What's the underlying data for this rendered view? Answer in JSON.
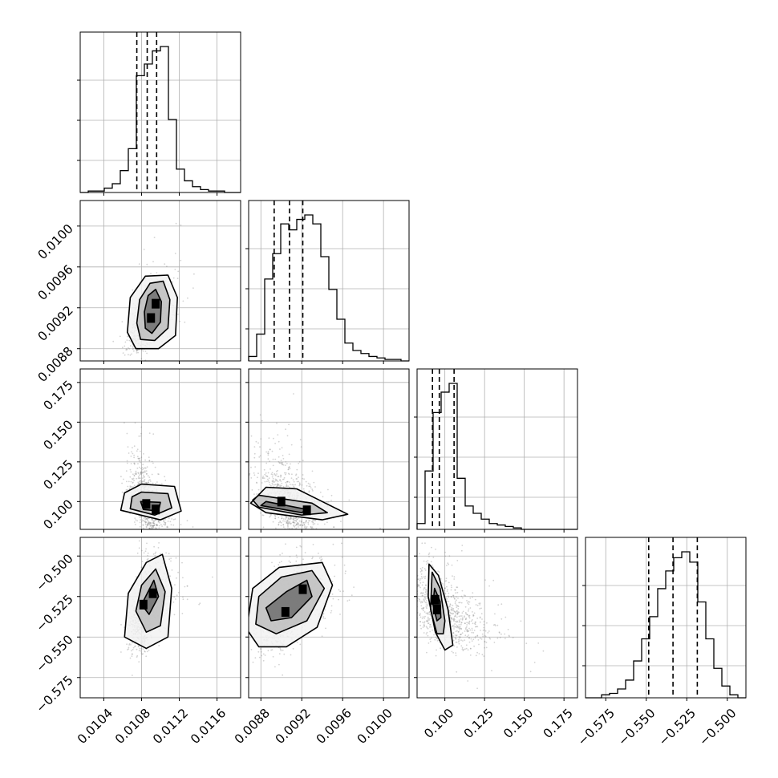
{
  "chart_data": {
    "type": "corner",
    "grid": true,
    "scatter_color": "#808080",
    "line_color": "#000000",
    "parameters": [
      {
        "range": [
          0.01015,
          0.01185
        ],
        "ticks": [
          0.0104,
          0.0108,
          0.0112,
          0.0116
        ],
        "tick_labels": [
          "0.0104",
          "0.0108",
          "0.0112",
          "0.0116"
        ],
        "quantiles": [
          0.01075,
          0.01086,
          0.01096
        ],
        "mean": 0.01086,
        "sd": 9e-05
      },
      {
        "range": [
          0.00868,
          0.01025
        ],
        "ticks": [
          0.0088,
          0.0092,
          0.0096,
          0.01
        ],
        "tick_labels": [
          "0.0088",
          "0.0092",
          "0.0096",
          "0.0100"
        ],
        "quantiles": [
          0.00893,
          0.00908,
          0.00921
        ],
        "mean": 0.00907,
        "sd": 0.00015
      },
      {
        "range": [
          0.0825,
          0.1835
        ],
        "ticks": [
          0.1,
          0.125,
          0.15,
          0.175
        ],
        "tick_labels": [
          "0.100",
          "0.125",
          "0.150",
          "0.175"
        ],
        "quantiles": [
          0.0922,
          0.0965,
          0.1058
        ],
        "mean": 0.098,
        "sd": 0.012
      },
      {
        "range": [
          -0.5875,
          -0.4885
        ],
        "ticks": [
          -0.575,
          -0.55,
          -0.525,
          -0.5
        ],
        "tick_labels": [
          "−0.575",
          "−0.550",
          "−0.525",
          "−0.500"
        ],
        "quantiles": [
          -0.5485,
          -0.5335,
          -0.5185
        ],
        "mean": -0.5335,
        "sd": 0.0125
      }
    ],
    "histograms": [
      {
        "bins": [
          0.01015,
          0.01185
        ],
        "counts": [
          0.0,
          0.01,
          0.01,
          0.03,
          0.06,
          0.15,
          0.3,
          0.8,
          0.88,
          0.97,
          1.0,
          0.5,
          0.16,
          0.08,
          0.04,
          0.02,
          0.01,
          0.01,
          0.0,
          0.0
        ]
      },
      {
        "bins": [
          0.00868,
          0.01025
        ],
        "counts": [
          0.03,
          0.18,
          0.55,
          0.72,
          0.92,
          0.88,
          0.95,
          0.98,
          0.92,
          0.7,
          0.48,
          0.28,
          0.12,
          0.07,
          0.05,
          0.03,
          0.02,
          0.01,
          0.01,
          0.0
        ]
      },
      {
        "bins": [
          0.0825,
          0.1835
        ],
        "counts": [
          0.04,
          0.4,
          0.8,
          0.94,
          1.0,
          0.35,
          0.16,
          0.11,
          0.07,
          0.04,
          0.03,
          0.02,
          0.01,
          0.0,
          0.0,
          0.0,
          0.0,
          0.0,
          0.0,
          0.0
        ]
      },
      {
        "bins": [
          -0.5875,
          -0.4885
        ],
        "counts": [
          0.0,
          0.0,
          0.02,
          0.03,
          0.06,
          0.12,
          0.25,
          0.4,
          0.55,
          0.74,
          0.86,
          0.95,
          0.99,
          0.92,
          0.65,
          0.4,
          0.2,
          0.08,
          0.02,
          0.0
        ]
      }
    ],
    "pairs": [
      {
        "x": 0,
        "y": 1,
        "peaks": [
          [
            0.01095,
            0.00924
          ],
          [
            0.0109,
            0.0091
          ]
        ],
        "contours": [
          [
            [
              0.01095,
              0.00938
            ],
            [
              0.01101,
              0.00926
            ],
            [
              0.011,
              0.00906
            ],
            [
              0.01091,
              0.00895
            ],
            [
              0.01084,
              0.009
            ],
            [
              0.01083,
              0.00916
            ],
            [
              0.01087,
              0.00932
            ]
          ],
          [
            [
              0.01103,
              0.00946
            ],
            [
              0.0111,
              0.00928
            ],
            [
              0.01108,
              0.009
            ],
            [
              0.01094,
              0.00888
            ],
            [
              0.01079,
              0.00889
            ],
            [
              0.01075,
              0.00905
            ],
            [
              0.01078,
              0.00928
            ],
            [
              0.01089,
              0.00944
            ]
          ],
          [
            [
              0.01108,
              0.00952
            ],
            [
              0.01118,
              0.0093
            ],
            [
              0.01116,
              0.00893
            ],
            [
              0.01098,
              0.0088
            ],
            [
              0.01074,
              0.0088
            ],
            [
              0.01065,
              0.00896
            ],
            [
              0.01068,
              0.0093
            ],
            [
              0.01084,
              0.00951
            ]
          ]
        ]
      },
      {
        "x": 0,
        "y": 2,
        "peaks": [
          [
            0.01085,
            0.0985
          ],
          [
            0.01095,
            0.095
          ]
        ],
        "contours": [
          [
            [
              0.01079,
              0.1
            ],
            [
              0.011,
              0.0995
            ],
            [
              0.01098,
              0.094
            ],
            [
              0.01082,
              0.095
            ]
          ],
          [
            [
              0.0108,
              0.106
            ],
            [
              0.01108,
              0.105
            ],
            [
              0.01112,
              0.096
            ],
            [
              0.01094,
              0.0915
            ],
            [
              0.01068,
              0.0955
            ],
            [
              0.0107,
              0.103
            ]
          ],
          [
            [
              0.0108,
              0.111
            ],
            [
              0.01115,
              0.1095
            ],
            [
              0.01122,
              0.094
            ],
            [
              0.011,
              0.0885
            ],
            [
              0.01058,
              0.0945
            ],
            [
              0.01062,
              0.1055
            ]
          ]
        ]
      },
      {
        "x": 1,
        "y": 2,
        "peaks": [
          [
            0.009,
            0.1
          ],
          [
            0.00925,
            0.0945
          ]
        ],
        "contours": [
          [
            [
              0.00885,
              0.1
            ],
            [
              0.00925,
              0.095
            ],
            [
              0.0092,
              0.093
            ],
            [
              0.0088,
              0.0975
            ]
          ],
          [
            [
              0.00878,
              0.104
            ],
            [
              0.0093,
              0.099
            ],
            [
              0.00945,
              0.093
            ],
            [
              0.0092,
              0.0915
            ],
            [
              0.00878,
              0.0965
            ],
            [
              0.00872,
              0.101
            ]
          ],
          [
            [
              0.00885,
              0.109
            ],
            [
              0.00915,
              0.108
            ],
            [
              0.0094,
              0.1
            ],
            [
              0.00965,
              0.092
            ],
            [
              0.0094,
              0.0885
            ],
            [
              0.00885,
              0.093
            ],
            [
              0.0087,
              0.099
            ]
          ]
        ]
      },
      {
        "x": 0,
        "y": 3,
        "peaks": [
          [
            0.01092,
            -0.523
          ],
          [
            0.01082,
            -0.53
          ]
        ],
        "contours": [
          [
            [
              0.01093,
              -0.515
            ],
            [
              0.01098,
              -0.525
            ],
            [
              0.01088,
              -0.536
            ],
            [
              0.0108,
              -0.53
            ]
          ],
          [
            [
              0.01095,
              -0.508
            ],
            [
              0.01105,
              -0.522
            ],
            [
              0.011,
              -0.543
            ],
            [
              0.01085,
              -0.547
            ],
            [
              0.01074,
              -0.534
            ],
            [
              0.0108,
              -0.518
            ]
          ],
          [
            [
              0.01102,
              -0.499
            ],
            [
              0.01112,
              -0.52
            ],
            [
              0.01108,
              -0.55
            ],
            [
              0.01085,
              -0.557
            ],
            [
              0.01062,
              -0.55
            ],
            [
              0.01066,
              -0.523
            ],
            [
              0.01085,
              -0.504
            ]
          ]
        ]
      },
      {
        "x": 1,
        "y": 3,
        "peaks": [
          [
            0.00921,
            -0.5205
          ],
          [
            0.00904,
            -0.5345
          ]
        ],
        "contours": [
          [
            [
              0.00925,
              -0.515
            ],
            [
              0.0093,
              -0.525
            ],
            [
              0.0091,
              -0.538
            ],
            [
              0.0089,
              -0.54
            ],
            [
              0.00885,
              -0.532
            ],
            [
              0.00905,
              -0.522
            ]
          ],
          [
            [
              0.0093,
              -0.509
            ],
            [
              0.00942,
              -0.52
            ],
            [
              0.00925,
              -0.54
            ],
            [
              0.00895,
              -0.548
            ],
            [
              0.00875,
              -0.542
            ],
            [
              0.00878,
              -0.525
            ],
            [
              0.009,
              -0.513
            ]
          ],
          [
            [
              0.0094,
              -0.504
            ],
            [
              0.0095,
              -0.518
            ],
            [
              0.00935,
              -0.544
            ],
            [
              0.00905,
              -0.556
            ],
            [
              0.00878,
              -0.556
            ],
            [
              0.00866,
              -0.545
            ],
            [
              0.00872,
              -0.52
            ],
            [
              0.00898,
              -0.507
            ]
          ]
        ]
      },
      {
        "x": 2,
        "y": 3,
        "peaks": [
          [
            0.094,
            -0.527
          ],
          [
            0.095,
            -0.533
          ]
        ],
        "contours": [
          [
            [
              0.0935,
              -0.52
            ],
            [
              0.097,
              -0.528
            ],
            [
              0.0975,
              -0.538
            ],
            [
              0.095,
              -0.54
            ],
            [
              0.0925,
              -0.53
            ]
          ],
          [
            [
              0.092,
              -0.51
            ],
            [
              0.097,
              -0.52
            ],
            [
              0.1,
              -0.54
            ],
            [
              0.099,
              -0.548
            ],
            [
              0.095,
              -0.548
            ],
            [
              0.091,
              -0.533
            ]
          ],
          [
            [
              0.09,
              -0.505
            ],
            [
              0.096,
              -0.512
            ],
            [
              0.102,
              -0.533
            ],
            [
              0.105,
              -0.555
            ],
            [
              0.1,
              -0.558
            ],
            [
              0.094,
              -0.547
            ],
            [
              0.0895,
              -0.525
            ]
          ]
        ]
      }
    ]
  }
}
